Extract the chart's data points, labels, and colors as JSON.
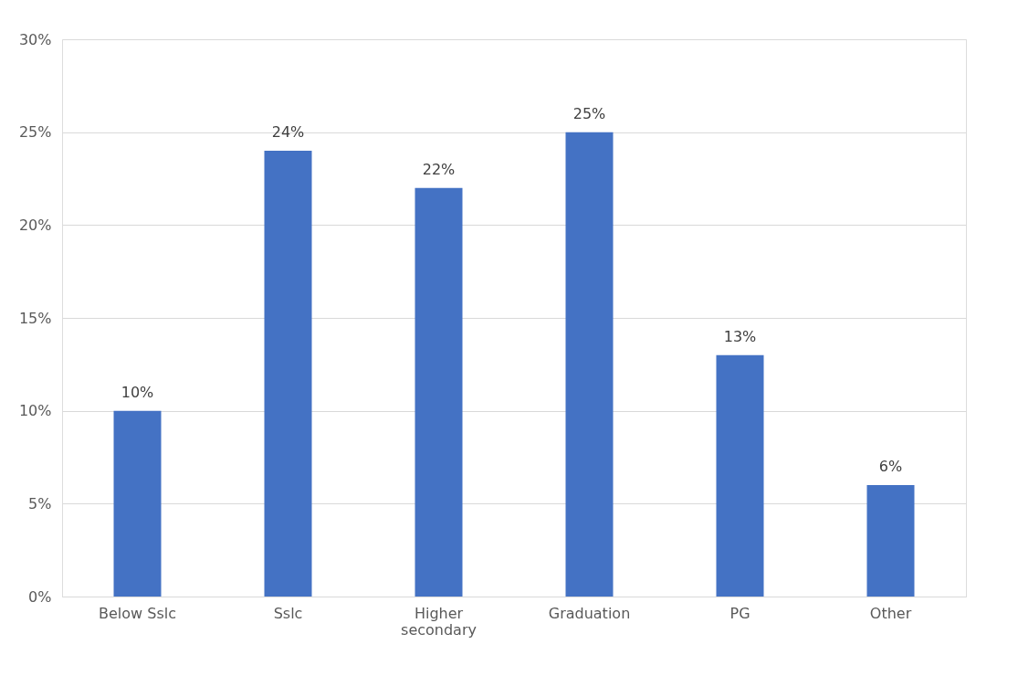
{
  "chart_data": {
    "type": "bar",
    "categories": [
      "Below Sslc",
      "Sslc",
      "Higher secondary",
      "Graduation",
      "PG",
      "Other"
    ],
    "values": [
      10,
      24,
      22,
      25,
      13,
      6
    ],
    "value_labels": [
      "10%",
      "24%",
      "22%",
      "25%",
      "13%",
      "6%"
    ],
    "color": "#4472c4",
    "ylim": [
      0,
      30
    ],
    "yticks": [
      {
        "value": 0,
        "label": "0%"
      },
      {
        "value": 5,
        "label": "5%"
      },
      {
        "value": 10,
        "label": "10%"
      },
      {
        "value": 15,
        "label": "15%"
      },
      {
        "value": 20,
        "label": "20%"
      },
      {
        "value": 25,
        "label": "25%"
      },
      {
        "value": 30,
        "label": "30%"
      }
    ],
    "grid": "y"
  }
}
